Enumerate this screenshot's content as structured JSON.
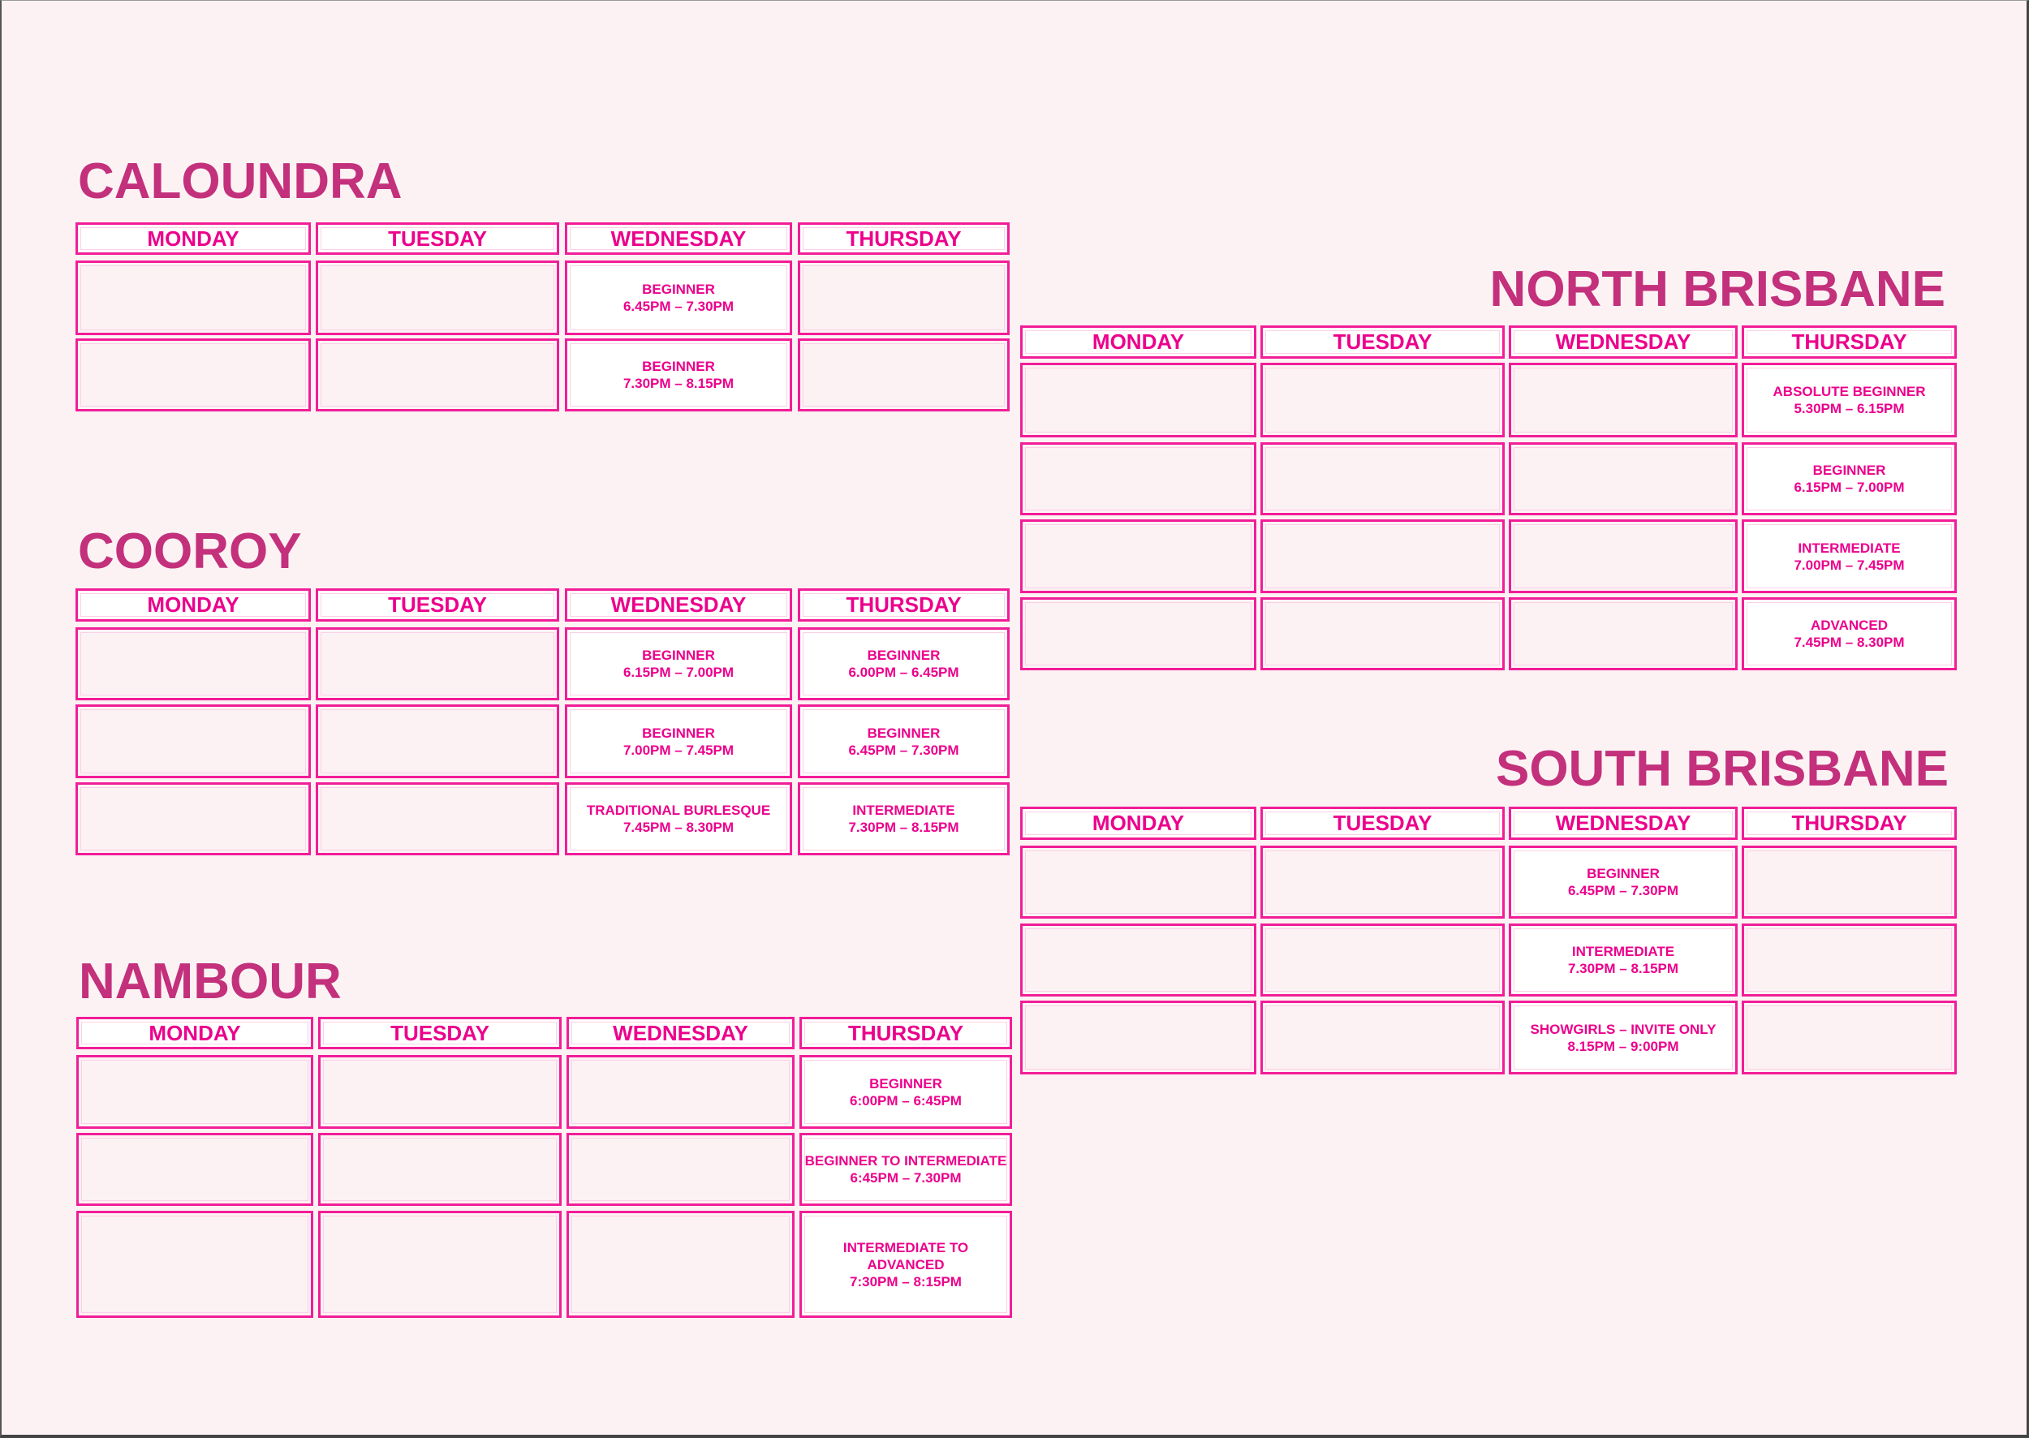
{
  "colors": {
    "title": "#c3307b",
    "text": "#ec008c",
    "border": "#f21d98",
    "background": "#fcf2f4",
    "filled_cell": "#ffffff"
  },
  "locations": [
    {
      "id": "caloundra",
      "name": "CALOUNDRA",
      "days": [
        "MONDAY",
        "TUESDAY",
        "WEDNESDAY",
        "THURSDAY"
      ],
      "rows": [
        [
          null,
          null,
          {
            "class": "BEGINNER",
            "time": "6.45PM – 7.30PM"
          },
          null
        ],
        [
          null,
          null,
          {
            "class": "BEGINNER",
            "time": "7.30PM – 8.15PM"
          },
          null
        ]
      ]
    },
    {
      "id": "cooroy",
      "name": "COOROY",
      "days": [
        "MONDAY",
        "TUESDAY",
        "WEDNESDAY",
        "THURSDAY"
      ],
      "rows": [
        [
          null,
          null,
          {
            "class": "BEGINNER",
            "time": "6.15PM – 7.00PM"
          },
          {
            "class": "BEGINNER",
            "time": "6.00PM – 6.45PM"
          }
        ],
        [
          null,
          null,
          {
            "class": "BEGINNER",
            "time": "7.00PM – 7.45PM"
          },
          {
            "class": "BEGINNER",
            "time": "6.45PM – 7.30PM"
          }
        ],
        [
          null,
          null,
          {
            "class": "TRADITIONAL BURLESQUE",
            "time": "7.45PM – 8.30PM"
          },
          {
            "class": "INTERMEDIATE",
            "time": "7.30PM – 8.15PM"
          }
        ]
      ]
    },
    {
      "id": "nambour",
      "name": "NAMBOUR",
      "days": [
        "MONDAY",
        "TUESDAY",
        "WEDNESDAY",
        "THURSDAY"
      ],
      "rows": [
        [
          null,
          null,
          null,
          {
            "class": "BEGINNER",
            "time": "6:00PM – 6:45PM"
          }
        ],
        [
          null,
          null,
          null,
          {
            "class": "BEGINNER TO INTERMEDIATE",
            "time": "6:45PM – 7.30PM"
          }
        ],
        [
          null,
          null,
          null,
          {
            "class": "INTERMEDIATE TO ADVANCED",
            "time": "7:30PM – 8:15PM"
          }
        ]
      ]
    },
    {
      "id": "north-brisbane",
      "name": "NORTH BRISBANE",
      "days": [
        "MONDAY",
        "TUESDAY",
        "WEDNESDAY",
        "THURSDAY"
      ],
      "rows": [
        [
          null,
          null,
          null,
          {
            "class": "ABSOLUTE BEGINNER",
            "time": "5.30PM – 6.15PM"
          }
        ],
        [
          null,
          null,
          null,
          {
            "class": "BEGINNER",
            "time": "6.15PM – 7.00PM"
          }
        ],
        [
          null,
          null,
          null,
          {
            "class": "INTERMEDIATE",
            "time": "7.00PM – 7.45PM"
          }
        ],
        [
          null,
          null,
          null,
          {
            "class": "ADVANCED",
            "time": "7.45PM – 8.30PM"
          }
        ]
      ]
    },
    {
      "id": "south-brisbane",
      "name": "SOUTH BRISBANE",
      "days": [
        "MONDAY",
        "TUESDAY",
        "WEDNESDAY",
        "THURSDAY"
      ],
      "rows": [
        [
          null,
          null,
          {
            "class": "BEGINNER",
            "time": "6.45PM – 7.30PM"
          },
          null
        ],
        [
          null,
          null,
          {
            "class": "INTERMEDIATE",
            "time": "7.30PM – 8.15PM"
          },
          null
        ],
        [
          null,
          null,
          {
            "class": "SHOWGIRLS – INVITE ONLY",
            "time": "8.15PM – 9:00PM"
          },
          null
        ]
      ]
    }
  ]
}
